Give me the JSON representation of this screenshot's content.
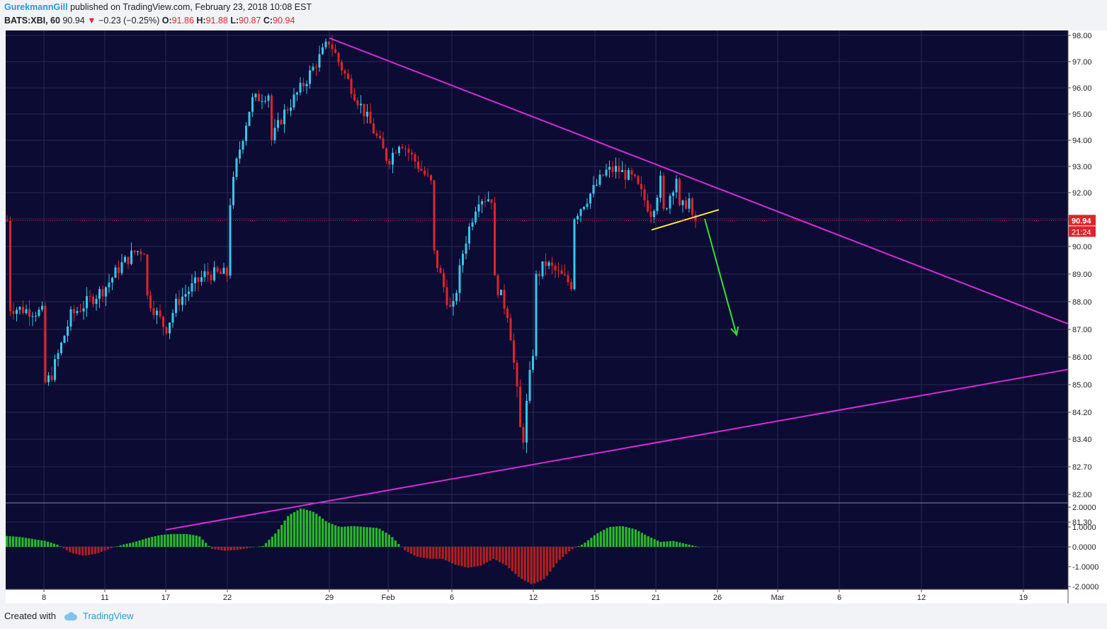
{
  "header": {
    "user": "GurekmannGill",
    "published": "published on TradingView.com, February 23, 2018 10:08 EST",
    "symbol": "BATS:XBI, 60",
    "last": "90.94",
    "change_arrow": "▼",
    "change": "−0.23 (−0.25%)",
    "o_label": "O:",
    "o": "91.86",
    "h_label": "H:",
    "h": "91.88",
    "l_label": "L:",
    "l": "90.87",
    "c_label": "C:",
    "c": "90.94"
  },
  "footer": {
    "created_with": "Created with",
    "brand": "TradingView",
    "brand_icon": "tradingview-cloud-icon"
  },
  "colors": {
    "background": "#0b0b33",
    "grid": "#2a2a55",
    "up": "#35c8ea",
    "down": "#e0232a",
    "trendline": "#d62ad6",
    "support": "#ffea2e",
    "arrow": "#33e033",
    "osc_up": "#29b829",
    "osc_down": "#b01f1f"
  },
  "chart_data": [
    {
      "type": "candlestick",
      "symbol": "BATS:XBI",
      "interval": "60",
      "ylim": [
        81.3,
        98.0
      ],
      "y_ticks": [
        "98.00",
        "97.00",
        "96.00",
        "95.00",
        "94.00",
        "93.00",
        "92.00",
        "91.00",
        "90.00",
        "89.00",
        "88.00",
        "87.00",
        "86.00",
        "85.00",
        "84.20",
        "83.40",
        "82.70",
        "82.00",
        "81.30"
      ],
      "x_ticks": [
        "8",
        "11",
        "17",
        "22",
        "29",
        "Feb",
        "6",
        "12",
        "15",
        "21",
        "26",
        "Mar",
        "6",
        "12",
        "19"
      ],
      "last_price_label": "90.94",
      "countdown_label": "21:24",
      "price_path": [
        {
          "x": "Jan 5",
          "y": 87.8
        },
        {
          "x": "Jan 8",
          "y": 87.6
        },
        {
          "x": "Jan 8",
          "y": 85.0
        },
        {
          "x": "Jan 9",
          "y": 85.3
        },
        {
          "x": "Jan 10",
          "y": 87.5
        },
        {
          "x": "Jan 11",
          "y": 88.5
        },
        {
          "x": "Jan 12",
          "y": 89.3
        },
        {
          "x": "Jan 15",
          "y": 89.8
        },
        {
          "x": "Jan 16",
          "y": 89.9
        },
        {
          "x": "Jan 16",
          "y": 88.3
        },
        {
          "x": "Jan 17",
          "y": 87.0
        },
        {
          "x": "Jan 18",
          "y": 88.0
        },
        {
          "x": "Jan 19",
          "y": 88.5
        },
        {
          "x": "Jan 20",
          "y": 89.0
        },
        {
          "x": "Jan 22",
          "y": 89.0
        },
        {
          "x": "Jan 22",
          "y": 91.0
        },
        {
          "x": "Jan 23",
          "y": 93.3
        },
        {
          "x": "Jan 24",
          "y": 95.5
        },
        {
          "x": "Jan 25",
          "y": 95.8
        },
        {
          "x": "Jan 25",
          "y": 93.8
        },
        {
          "x": "Jan 26",
          "y": 95.0
        },
        {
          "x": "Jan 27",
          "y": 96.2
        },
        {
          "x": "Jan 29",
          "y": 97.8
        },
        {
          "x": "Jan 30",
          "y": 97.0
        },
        {
          "x": "Jan 31",
          "y": 95.8
        },
        {
          "x": "Feb 1",
          "y": 94.5
        },
        {
          "x": "Feb 2",
          "y": 93.2
        },
        {
          "x": "Feb 3",
          "y": 94.0
        },
        {
          "x": "Feb 5",
          "y": 92.3
        },
        {
          "x": "Feb 5",
          "y": 90.0
        },
        {
          "x": "Feb 6",
          "y": 87.5
        },
        {
          "x": "Feb 7",
          "y": 90.0
        },
        {
          "x": "Feb 8",
          "y": 91.8
        },
        {
          "x": "Feb 9",
          "y": 91.8
        },
        {
          "x": "Feb 9",
          "y": 89.0
        },
        {
          "x": "Feb 10",
          "y": 87.5
        },
        {
          "x": "Feb 11",
          "y": 83.1
        },
        {
          "x": "Feb 12",
          "y": 86.3
        },
        {
          "x": "Feb 12",
          "y": 88.7
        },
        {
          "x": "Feb 13",
          "y": 89.4
        },
        {
          "x": "Feb 14",
          "y": 88.6
        },
        {
          "x": "Feb 14",
          "y": 91.0
        },
        {
          "x": "Feb 15",
          "y": 92.2
        },
        {
          "x": "Feb 16",
          "y": 92.8
        },
        {
          "x": "Feb 17",
          "y": 92.9
        },
        {
          "x": "Feb 19",
          "y": 92.5
        },
        {
          "x": "Feb 20",
          "y": 91.2
        },
        {
          "x": "Feb 21",
          "y": 92.7
        },
        {
          "x": "Feb 21",
          "y": 91.1
        },
        {
          "x": "Feb 22",
          "y": 92.6
        },
        {
          "x": "Feb 22",
          "y": 91.2
        },
        {
          "x": "Feb 23",
          "y": 91.8
        },
        {
          "x": "Feb 23",
          "y": 90.94
        }
      ],
      "drawings": [
        {
          "kind": "descending-trendline",
          "from": {
            "x": "Jan 29",
            "y": 97.9
          },
          "to": {
            "x": "Mar 21",
            "y": 87.2
          }
        },
        {
          "kind": "ascending-trendline",
          "from": {
            "x": "Jan 17",
            "y": 81.1
          },
          "to": {
            "x": "Mar 21",
            "y": 85.55
          }
        },
        {
          "kind": "support-line",
          "from": {
            "x": "Feb 20",
            "y": 90.6
          },
          "to": {
            "x": "Feb 25",
            "y": 91.35
          }
        },
        {
          "kind": "projection-arrow",
          "from": {
            "x": "Feb 24",
            "y": 91.0
          },
          "to": {
            "x": "Feb 27",
            "y": 86.8
          }
        }
      ]
    },
    {
      "type": "histogram",
      "name": "oscillator",
      "ylim": [
        -2.0,
        2.0
      ],
      "y_ticks": [
        "2.0000",
        "1.0000",
        "0.0000",
        "-1.0000",
        "-2.0000"
      ],
      "values": [
        0.55,
        0.5,
        0.4,
        0.3,
        0.1,
        -0.3,
        -0.45,
        -0.35,
        -0.1,
        0.1,
        0.25,
        0.45,
        0.6,
        0.65,
        0.65,
        0.55,
        -0.1,
        -0.2,
        -0.15,
        -0.05,
        0.05,
        0.7,
        1.6,
        1.95,
        1.75,
        1.25,
        1.0,
        1.05,
        1.0,
        0.95,
        0.55,
        -0.15,
        -0.5,
        -0.6,
        -0.6,
        -0.9,
        -1.05,
        -0.95,
        -0.6,
        -0.95,
        -1.55,
        -1.9,
        -1.6,
        -0.75,
        -0.15,
        0.15,
        0.65,
        1.0,
        1.05,
        0.9,
        0.55,
        0.25,
        0.3,
        0.15,
        0.0
      ]
    }
  ]
}
